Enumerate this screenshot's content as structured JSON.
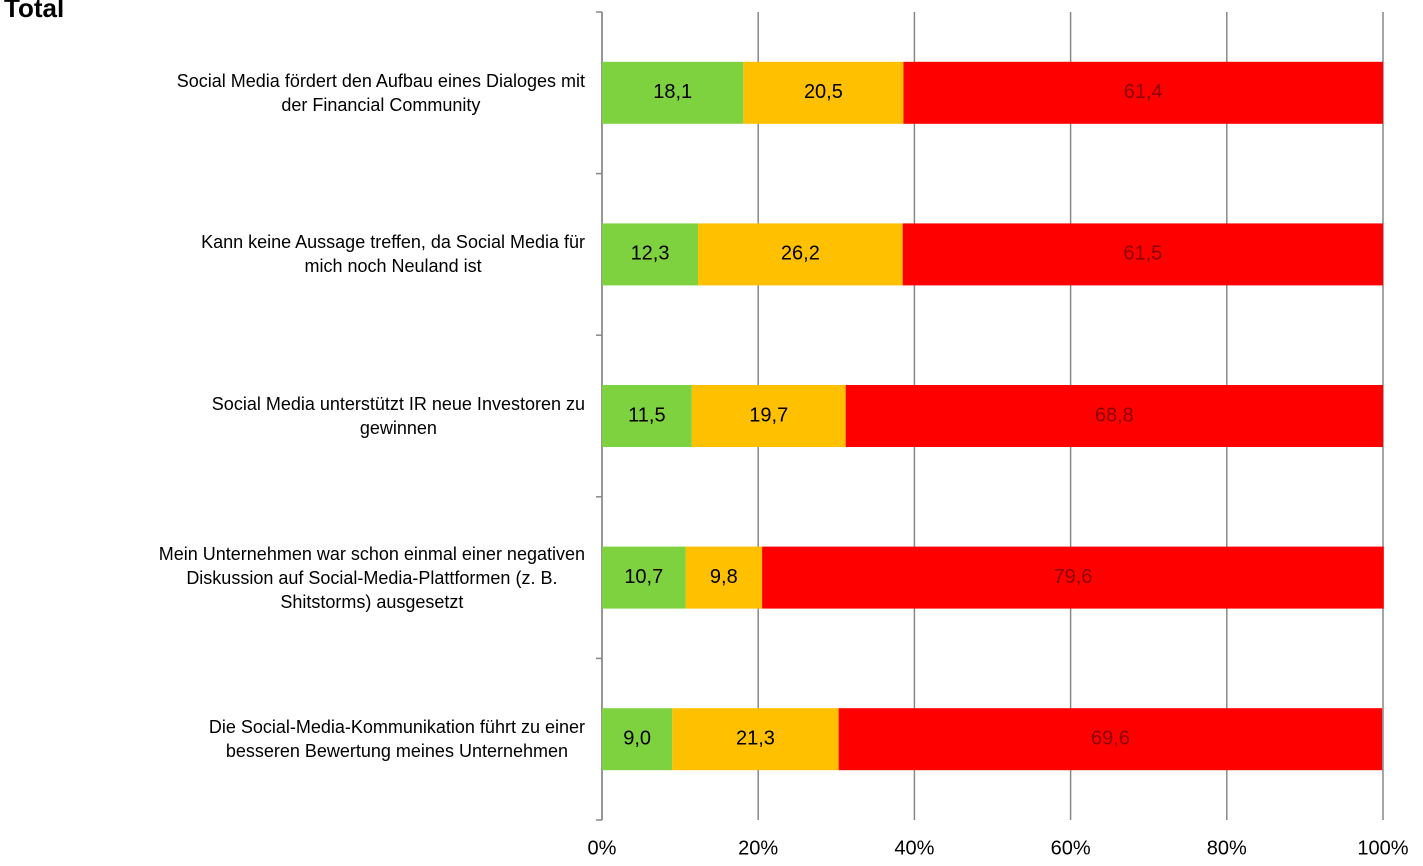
{
  "chart_data": {
    "type": "stacked_bar_horizontal",
    "title": "Total",
    "categories": [
      "Social Media fördert den Aufbau eines Dialoges mit\nder Financial Community",
      "Kann keine Aussage treffen, da Social Media für\nmich noch Neuland ist",
      "Social Media unterstützt IR neue Investoren zu\ngewinnen",
      "Mein Unternehmen war schon einmal einer negativen\nDiskussion auf Social-Media-Plattformen (z. B.\nShitstorms) ausgesetzt",
      "Die Social-Media-Kommunikation führt zu einer\nbesseren Bewertung meines Unternehmen"
    ],
    "series": [
      {
        "color": "#7ed13f",
        "label_color": "#000000",
        "values": [
          18.1,
          12.3,
          11.5,
          10.7,
          9.0
        ],
        "value_labels": [
          "18,1",
          "12,3",
          "11,5",
          "10,7",
          "9,0"
        ]
      },
      {
        "color": "#ffc000",
        "label_color": "#000000",
        "values": [
          20.5,
          26.2,
          19.7,
          9.8,
          21.3
        ],
        "value_labels": [
          "20,5",
          "26,2",
          "19,7",
          "9,8",
          "21,3"
        ]
      },
      {
        "color": "#ff0000",
        "label_color": "#8b0000",
        "values": [
          61.4,
          61.5,
          68.8,
          79.6,
          69.6
        ],
        "value_labels": [
          "61,4",
          "61,5",
          "68,8",
          "79,6",
          "69,6"
        ]
      }
    ],
    "xlim": [
      0,
      100
    ],
    "xticks": [
      {
        "value": 0,
        "label": "0%"
      },
      {
        "value": 20,
        "label": "20%"
      },
      {
        "value": 40,
        "label": "40%"
      },
      {
        "value": 60,
        "label": "60%"
      },
      {
        "value": 80,
        "label": "80%"
      },
      {
        "value": 100,
        "label": "100%"
      }
    ],
    "grid": true
  }
}
